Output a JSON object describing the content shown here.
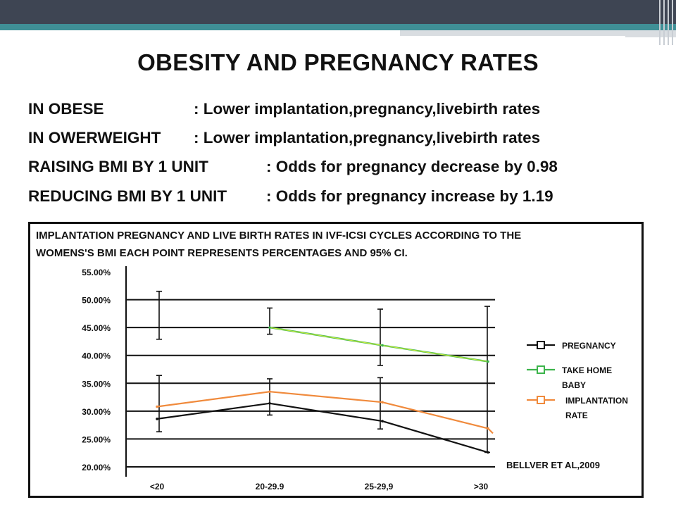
{
  "slide": {
    "title": "OBESITY AND PREGNANCY RATES",
    "rows": [
      {
        "label": "IN OBESE",
        "value": ": Lower implantation,pregnancy,livebirth rates"
      },
      {
        "label": "IN OWERWEIGHT",
        "value": ": Lower implantation,pregnancy,livebirth rates"
      },
      {
        "label": "RAISING BMI BY 1 UNIT",
        "value": ": Odds for pregnancy decrease by 0.98"
      },
      {
        "label": "REDUCING BMI BY 1 UNIT",
        "value": ": Odds for pregnancy increase by 1.19"
      }
    ],
    "colors": {
      "top_bar": "#3e4553",
      "accent_strip": "#3f8f96"
    }
  },
  "chart_data": {
    "type": "line",
    "title_lines": [
      "IMPLANTATION PREGNANCY AND LIVE BIRTH RATES IN IVF-ICSI CYCLES ACCORDING TO THE",
      "WOMENS'S BMI EACH POINT REPRESENTS PERCENTAGES AND 95% CI."
    ],
    "categories": [
      "<20",
      "20-29.9",
      "25-29,9",
      ">30"
    ],
    "y_ticks": [
      "55.00%",
      "50.00%",
      "45.00%",
      "40.00%",
      "35.00%",
      "30.00%",
      "25.00%",
      "20.00%"
    ],
    "ylim": [
      20,
      55
    ],
    "grid": true,
    "legend_position": "right",
    "series": [
      {
        "name": "PREGNANCY",
        "color": "#111111",
        "values": [
          28.6,
          31.4,
          28.2,
          22.6
        ]
      },
      {
        "name": "TAKE HOME BABY",
        "color": "#3cb44b",
        "values": [
          null,
          45.0,
          41.8,
          38.9
        ]
      },
      {
        "name": "IMPLANTATION RATE",
        "color": "#f08a3c",
        "values": [
          30.8,
          33.5,
          31.6,
          26.9
        ]
      }
    ],
    "error_bars": [
      {
        "category": "<20",
        "low": 26.3,
        "high": 36.4
      },
      {
        "category": "<20",
        "low": 42.9,
        "high": 51.5
      },
      {
        "category": "20-29.9",
        "low": 29.3,
        "high": 35.8
      },
      {
        "category": "20-29.9",
        "low": 43.8,
        "high": 48.5
      },
      {
        "category": "25-29,9",
        "low": 26.8,
        "high": 36.0
      },
      {
        "category": "25-29,9",
        "low": 38.2,
        "high": 48.3
      },
      {
        "category": ">30",
        "low": 22.6,
        "high": 48.8
      }
    ],
    "legend_labels": [
      [
        "PREGNANCY"
      ],
      [
        "TAKE HOME",
        "BABY"
      ],
      [
        "IMPLANTATION",
        "RATE"
      ]
    ],
    "annotation": "BELLVER ET AL,2009"
  }
}
